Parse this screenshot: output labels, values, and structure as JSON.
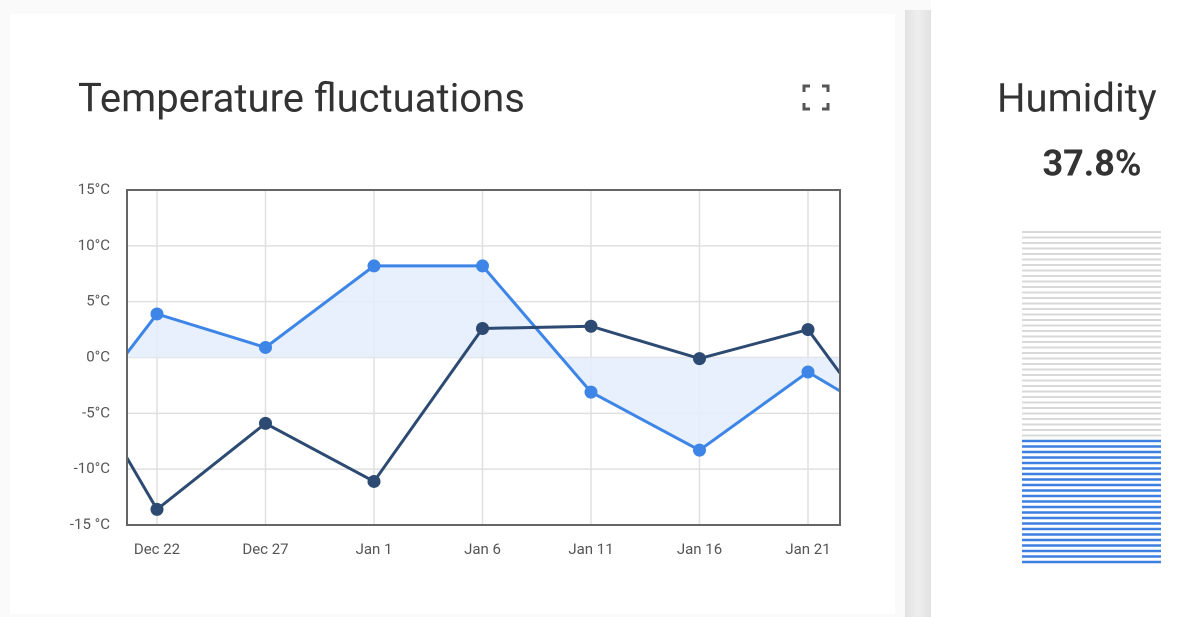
{
  "temperature_card": {
    "title": "Temperature fluctuations",
    "chart_data": {
      "type": "line",
      "categories": [
        null,
        "Dec 22",
        "Dec 27",
        "Jan 1",
        "Jan 6",
        "Jan 11",
        "Jan 16",
        "Jan 21",
        null
      ],
      "series": [
        {
          "color": "#3d85e6",
          "area": true,
          "values": [
            0.4,
            3.9,
            0.9,
            8.2,
            8.2,
            -3.1,
            -8.3,
            -1.3,
            -3.0
          ]
        },
        {
          "color": "#2c4a72",
          "values": [
            -9.0,
            -13.6,
            -5.9,
            -11.1,
            2.6,
            2.8,
            -0.1,
            2.5,
            -1.4
          ]
        }
      ],
      "ylim": [
        -15,
        15
      ],
      "yticks": [
        {
          "value": 15,
          "label": "15°C"
        },
        {
          "value": 10,
          "label": "10°C"
        },
        {
          "value": 5,
          "label": "5°C"
        },
        {
          "value": 0,
          "label": "0°C"
        },
        {
          "value": -5,
          "label": "-5°C"
        },
        {
          "value": -10,
          "label": "-10°C"
        },
        {
          "value": -15,
          "label": "-15 °C"
        }
      ],
      "grid": true
    }
  },
  "humidity_card": {
    "title": "Humidity",
    "gauge": {
      "value": 37.8,
      "value_label": "37.8%",
      "ylim": [
        0,
        100
      ],
      "color": "#3d7fe0"
    }
  }
}
